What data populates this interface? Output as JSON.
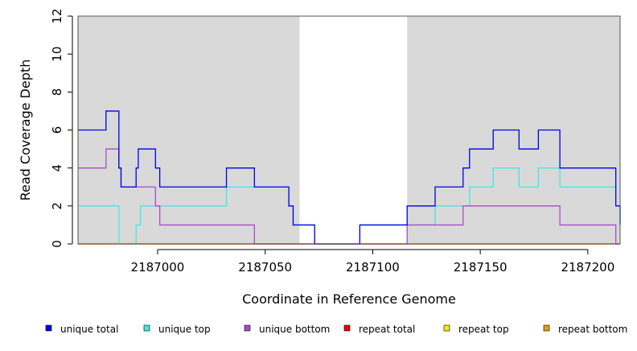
{
  "chart_data": {
    "type": "line",
    "step": true,
    "title": "",
    "xlabel": "Coordinate in Reference Genome",
    "ylabel": "Read Coverage Depth",
    "xlim": [
      2186963,
      2187215
    ],
    "ylim": [
      0,
      12
    ],
    "x_ticks": [
      2187000,
      2187050,
      2187100,
      2187150,
      2187200
    ],
    "y_ticks": [
      0,
      2,
      4,
      6,
      8,
      10,
      12
    ],
    "shaded_regions": [
      [
        2186963,
        2187066
      ],
      [
        2187116,
        2187215
      ]
    ],
    "shade_color": "#d9d9d9",
    "legend_position": "bottom",
    "series": [
      {
        "name": "unique total",
        "color": "#0000ee",
        "points": [
          [
            2186963,
            6
          ],
          [
            2186976,
            7
          ],
          [
            2186982,
            4
          ],
          [
            2186983,
            3
          ],
          [
            2186990,
            4
          ],
          [
            2186991,
            5
          ],
          [
            2186999,
            4
          ],
          [
            2187001,
            3
          ],
          [
            2187032,
            4
          ],
          [
            2187045,
            3
          ],
          [
            2187061,
            2
          ],
          [
            2187063,
            1
          ],
          [
            2187073,
            0
          ],
          [
            2187094,
            1
          ],
          [
            2187116,
            2
          ],
          [
            2187129,
            3
          ],
          [
            2187142,
            4
          ],
          [
            2187145,
            5
          ],
          [
            2187156,
            6
          ],
          [
            2187168,
            5
          ],
          [
            2187177,
            6
          ],
          [
            2187187,
            4
          ],
          [
            2187213,
            2
          ],
          [
            2187215,
            1
          ]
        ]
      },
      {
        "name": "unique top",
        "color": "#44e6e6",
        "points": [
          [
            2186963,
            2
          ],
          [
            2186982,
            0
          ],
          [
            2186990,
            1
          ],
          [
            2186992,
            2
          ],
          [
            2187032,
            3
          ],
          [
            2187045,
            3
          ],
          [
            2187061,
            2
          ],
          [
            2187063,
            1
          ],
          [
            2187073,
            0
          ],
          [
            2187094,
            1
          ],
          [
            2187116,
            1
          ],
          [
            2187129,
            2
          ],
          [
            2187142,
            2
          ],
          [
            2187145,
            3
          ],
          [
            2187156,
            4
          ],
          [
            2187168,
            3
          ],
          [
            2187177,
            4
          ],
          [
            2187187,
            3
          ],
          [
            2187213,
            2
          ],
          [
            2187215,
            1
          ]
        ]
      },
      {
        "name": "unique bottom",
        "color": "#a64dcc",
        "points": [
          [
            2186963,
            4
          ],
          [
            2186976,
            5
          ],
          [
            2186982,
            4
          ],
          [
            2186983,
            3
          ],
          [
            2186999,
            2
          ],
          [
            2187001,
            1
          ],
          [
            2187045,
            0
          ],
          [
            2187116,
            1
          ],
          [
            2187142,
            2
          ],
          [
            2187187,
            1
          ],
          [
            2187213,
            0
          ],
          [
            2187215,
            0
          ]
        ]
      },
      {
        "name": "repeat total",
        "color": "#ee0000",
        "points": [
          [
            2186963,
            0
          ],
          [
            2187215,
            0
          ]
        ]
      },
      {
        "name": "repeat top",
        "color": "#eeee00",
        "points": [
          [
            2186963,
            0
          ],
          [
            2187215,
            0
          ]
        ]
      },
      {
        "name": "repeat bottom",
        "color": "#ee9a00",
        "points": [
          [
            2186963,
            0
          ],
          [
            2187215,
            0
          ]
        ]
      }
    ]
  }
}
